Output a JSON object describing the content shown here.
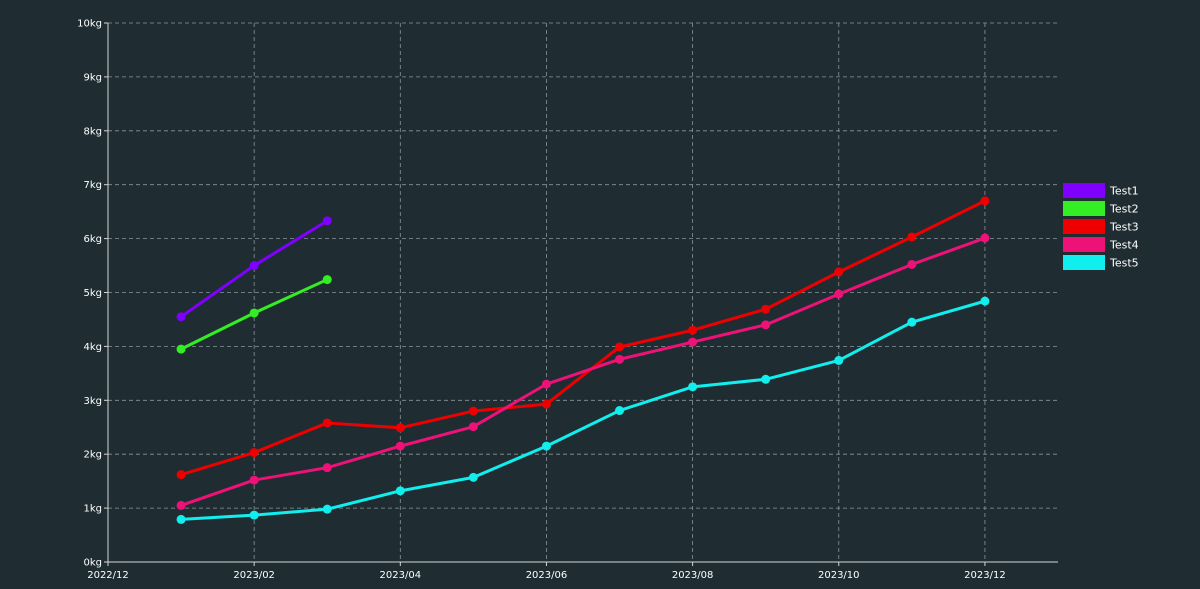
{
  "chart_data": {
    "type": "line",
    "title": "",
    "xlabel": "",
    "ylabel": "",
    "x_axis": {
      "min": "2022-12",
      "max": "2024-01",
      "ticks": [
        "2022/12",
        "2023/02",
        "2023/04",
        "2023/06",
        "2023/08",
        "2023/10",
        "2023/12"
      ]
    },
    "y_axis": {
      "min": 0,
      "max": 10,
      "ticks": [
        "0kg",
        "1kg",
        "2kg",
        "3kg",
        "4kg",
        "5kg",
        "6kg",
        "7kg",
        "8kg",
        "9kg",
        "10kg"
      ]
    },
    "grid": true,
    "legend_position": "right",
    "series": [
      {
        "name": "Test1",
        "color": "#7f00ff",
        "x": [
          "2023-01",
          "2023-02",
          "2023-03"
        ],
        "values": [
          4.55,
          5.5,
          6.33
        ]
      },
      {
        "name": "Test2",
        "color": "#33ee22",
        "x": [
          "2023-01",
          "2023-02",
          "2023-03"
        ],
        "values": [
          3.95,
          4.62,
          5.24
        ]
      },
      {
        "name": "Test3",
        "color": "#ee0000",
        "x": [
          "2023-01",
          "2023-02",
          "2023-03",
          "2023-04",
          "2023-05",
          "2023-06",
          "2023-07",
          "2023-08",
          "2023-09",
          "2023-10",
          "2023-11",
          "2023-12"
        ],
        "values": [
          1.62,
          2.03,
          2.58,
          2.49,
          2.8,
          2.93,
          3.99,
          4.3,
          4.69,
          5.38,
          6.03,
          6.7
        ]
      },
      {
        "name": "Test4",
        "color": "#ee1177",
        "x": [
          "2023-01",
          "2023-02",
          "2023-03",
          "2023-04",
          "2023-05",
          "2023-06",
          "2023-07",
          "2023-08",
          "2023-09",
          "2023-10",
          "2023-11",
          "2023-12"
        ],
        "values": [
          1.05,
          1.52,
          1.75,
          2.15,
          2.51,
          3.3,
          3.76,
          4.08,
          4.4,
          4.97,
          5.52,
          6.01
        ]
      },
      {
        "name": "Test5",
        "color": "#11eeee",
        "x": [
          "2023-01",
          "2023-02",
          "2023-03",
          "2023-04",
          "2023-05",
          "2023-06",
          "2023-07",
          "2023-08",
          "2023-09",
          "2023-10",
          "2023-11",
          "2023-12"
        ],
        "values": [
          0.79,
          0.87,
          0.98,
          1.32,
          1.57,
          2.15,
          2.81,
          3.25,
          3.39,
          3.74,
          4.45,
          4.84
        ]
      }
    ]
  }
}
